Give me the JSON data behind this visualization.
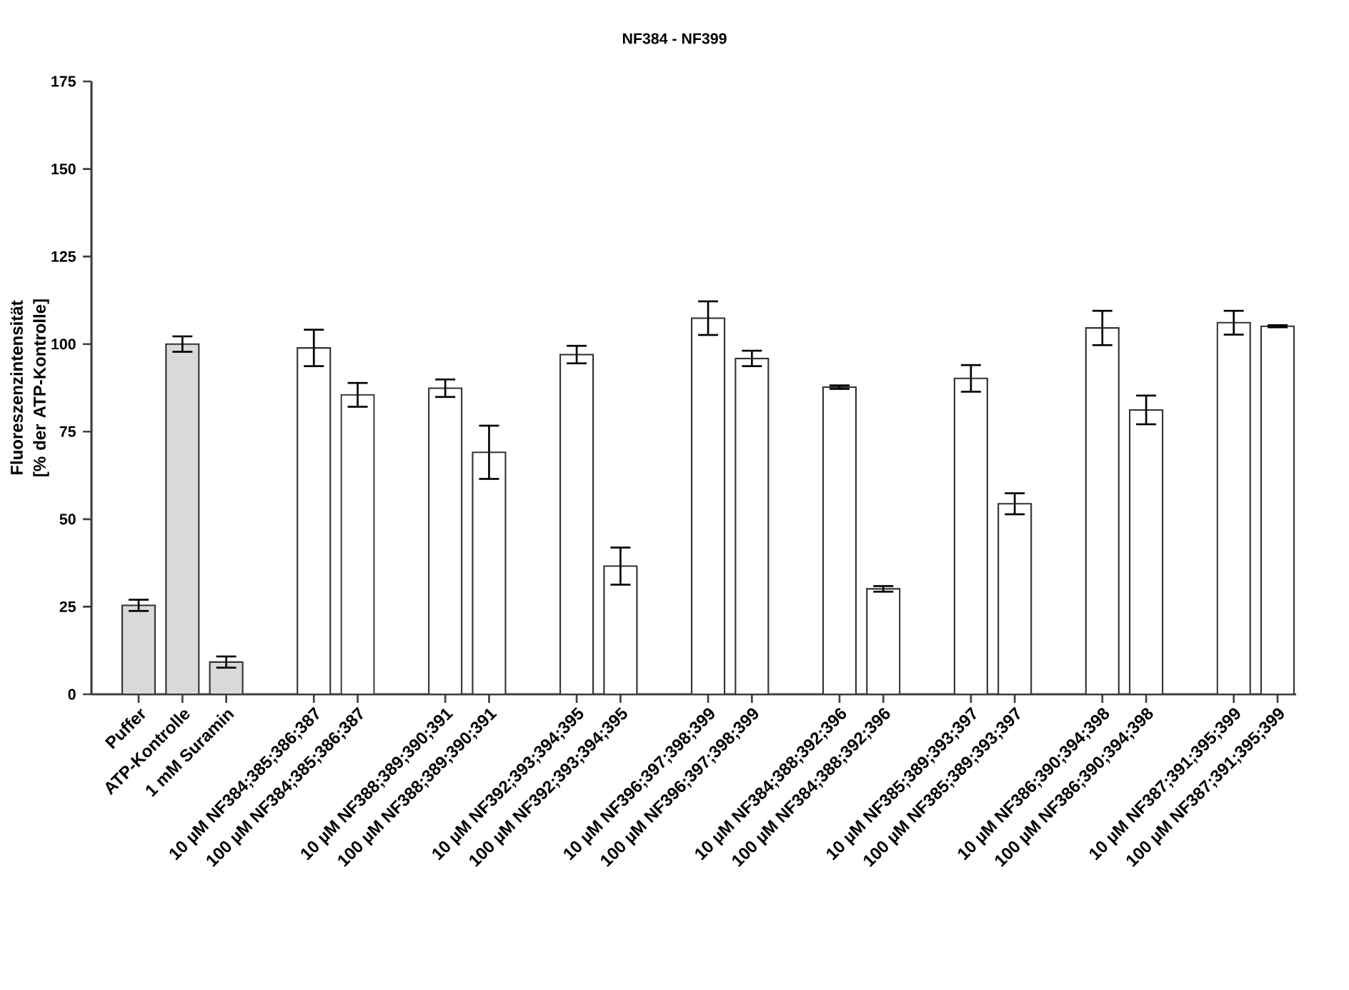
{
  "chart_data": {
    "type": "bar",
    "title": "NF384 - NF399",
    "ylabel": "Fluoreszenzintensität [% der ATP-Kontrolle]",
    "categories": [
      "Puffer",
      "ATP-Kontrolle",
      "1 mM Suramin",
      null,
      "10 µM NF384;385;386;387",
      "100 µM NF384;385;386;387",
      null,
      "10 µM NF388;389;390;391",
      "100 µM NF388;389;390;391",
      null,
      "10 µM NF392;393;394;395",
      "100 µM NF392;393;394;395",
      null,
      "10 µM NF396;397;398;399",
      "100 µM NF396;397;398;399",
      null,
      "10 µM NF384;388;392;396",
      "100 µM NF384;388;392;396",
      null,
      "10 µM NF385;389;393;397",
      "100 µM NF385;389;393;397",
      null,
      "10 µM NF386;390;394;398",
      "100 µM NF386;390;394;398",
      null,
      "10 µM NF387;391;395;399",
      "100 µM NF387;391;395;399"
    ],
    "values": [
      25.4,
      100,
      9.2,
      null,
      98.9,
      85.5,
      null,
      87.4,
      69.1,
      null,
      97.0,
      36.6,
      null,
      107.4,
      95.9,
      null,
      87.7,
      30.1,
      null,
      90.2,
      54.4,
      null,
      104.6,
      81.2,
      null,
      106.1,
      105.1
    ],
    "errors": [
      1.6,
      2.2,
      1.6,
      null,
      5.2,
      3.4,
      null,
      2.5,
      7.6,
      null,
      2.5,
      5.3,
      null,
      4.8,
      2.2,
      null,
      0.5,
      0.8,
      null,
      3.8,
      3.0,
      null,
      4.9,
      4.1,
      null,
      3.4,
      0.3
    ],
    "colors": [
      "#d9d9d9",
      "#d9d9d9",
      "#d9d9d9",
      null,
      "#ffffff",
      "#ffffff",
      null,
      "#ffffff",
      "#ffffff",
      null,
      "#ffffff",
      "#ffffff",
      null,
      "#ffffff",
      "#ffffff",
      null,
      "#ffffff",
      "#ffffff",
      null,
      "#ffffff",
      "#ffffff",
      null,
      "#ffffff",
      "#ffffff",
      null,
      "#ffffff",
      "#ffffff"
    ],
    "ylim": [
      0,
      175
    ],
    "yticks": [
      0,
      25,
      50,
      75,
      100,
      125,
      150,
      175
    ]
  }
}
